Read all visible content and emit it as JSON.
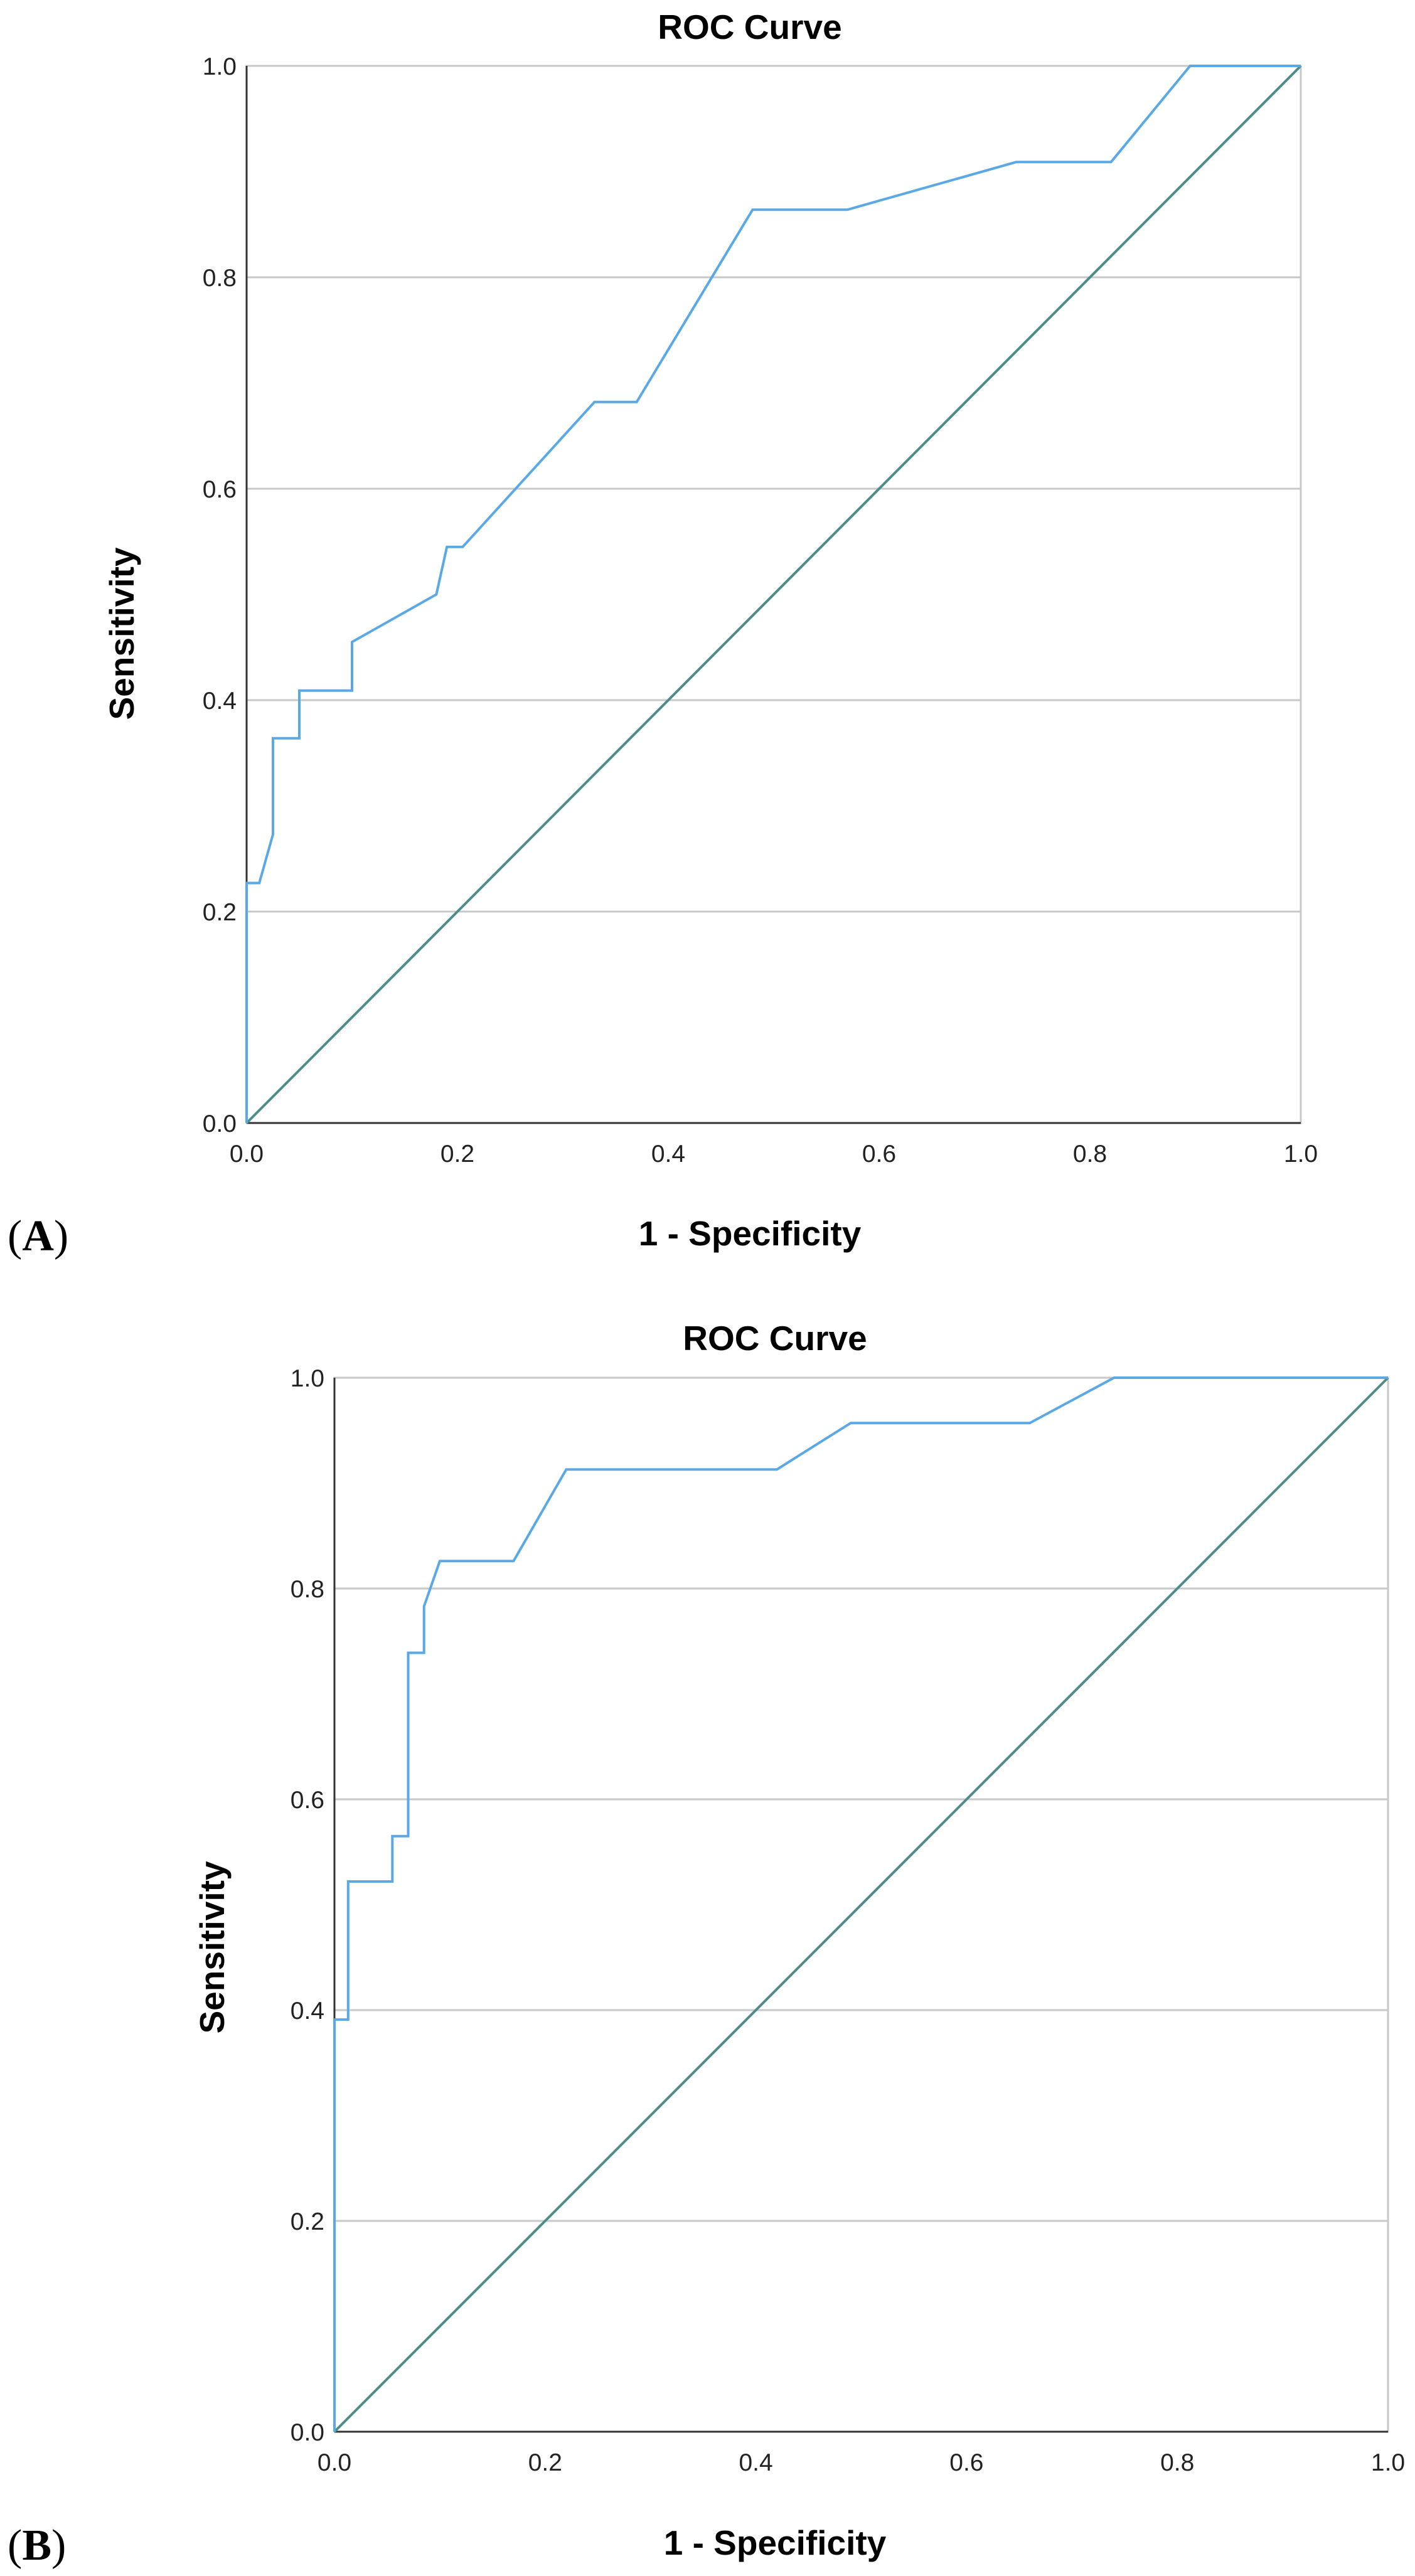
{
  "chart_data": [
    {
      "type": "line",
      "panel_label": "A",
      "title": "ROC Curve",
      "xlabel": "1 - Specificity",
      "ylabel": "Sensitivity",
      "xlim": [
        0,
        1
      ],
      "ylim": [
        0,
        1
      ],
      "xticks": [
        "0.0",
        "0.2",
        "0.4",
        "0.6",
        "0.8",
        "1.0"
      ],
      "yticks": [
        "0.0",
        "0.2",
        "0.4",
        "0.6",
        "0.8",
        "1.0"
      ],
      "grid": "horizontal",
      "legend": "none",
      "colors": {
        "curve": "#5aa9e6",
        "reference": "#4e8c8c",
        "grid": "#c8c8c8"
      },
      "series": [
        {
          "role": "roc-curve",
          "x": [
            0,
            0,
            0.012,
            0.025,
            0.025,
            0.05,
            0.05,
            0.1,
            0.1,
            0.18,
            0.19,
            0.205,
            0.33,
            0.37,
            0.48,
            0.57,
            0.73,
            0.82,
            0.895,
            1.0
          ],
          "y": [
            0,
            0.227,
            0.227,
            0.273,
            0.364,
            0.364,
            0.409,
            0.409,
            0.455,
            0.5,
            0.545,
            0.545,
            0.682,
            0.682,
            0.864,
            0.864,
            0.909,
            0.909,
            1.0,
            1.0
          ]
        },
        {
          "role": "reference-line",
          "x": [
            0,
            1
          ],
          "y": [
            0,
            1
          ]
        }
      ]
    },
    {
      "type": "line",
      "panel_label": "B",
      "title": "ROC Curve",
      "xlabel": "1 - Specificity",
      "ylabel": "Sensitivity",
      "xlim": [
        0,
        1
      ],
      "ylim": [
        0,
        1
      ],
      "xticks": [
        "0.0",
        "0.2",
        "0.4",
        "0.6",
        "0.8",
        "1.0"
      ],
      "yticks": [
        "0.0",
        "0.2",
        "0.4",
        "0.6",
        "0.8",
        "1.0"
      ],
      "grid": "horizontal",
      "legend": "none",
      "colors": {
        "curve": "#5aa9e6",
        "reference": "#4e8c8c",
        "grid": "#c8c8c8"
      },
      "series": [
        {
          "role": "roc-curve",
          "x": [
            0,
            0,
            0.013,
            0.013,
            0.055,
            0.055,
            0.07,
            0.07,
            0.085,
            0.085,
            0.1,
            0.17,
            0.22,
            0.42,
            0.49,
            0.66,
            0.74,
            1.0
          ],
          "y": [
            0,
            0.391,
            0.391,
            0.522,
            0.522,
            0.565,
            0.565,
            0.739,
            0.739,
            0.783,
            0.826,
            0.826,
            0.913,
            0.913,
            0.957,
            0.957,
            1.0,
            1.0
          ]
        },
        {
          "role": "reference-line",
          "x": [
            0,
            1
          ],
          "y": [
            0,
            1
          ]
        }
      ]
    }
  ]
}
